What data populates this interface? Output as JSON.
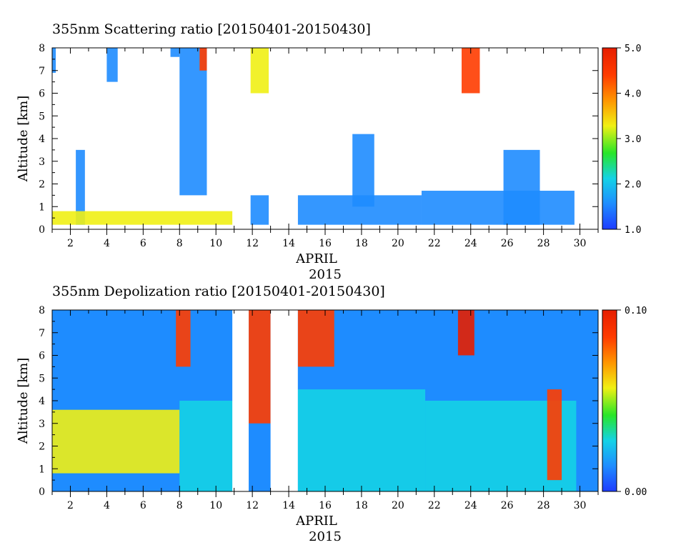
{
  "chart_data": [
    {
      "type": "heatmap",
      "title": "355nm Scattering ratio [20150401-20150430]",
      "xlabel": "APRIL",
      "xlabel2": "2015",
      "ylabel": "Altitude [km]",
      "x_unit": "day of April 2015",
      "xlim": [
        1,
        31
      ],
      "ylim": [
        0,
        8
      ],
      "x_ticks": [
        "2",
        "4",
        "6",
        "8",
        "10",
        "12",
        "14",
        "16",
        "18",
        "20",
        "22",
        "24",
        "26",
        "28",
        "30"
      ],
      "y_ticks": [
        "0",
        "1",
        "2",
        "3",
        "4",
        "5",
        "6",
        "7",
        "8"
      ],
      "colorbar": {
        "range": [
          1.0,
          5.0
        ],
        "tick_labels": [
          "1.0",
          "2.0",
          "3.0",
          "4.0",
          "5.0"
        ],
        "colors": [
          "#1e3cff",
          "#1e8cff",
          "#14d2e6",
          "#28e628",
          "#f0f014",
          "#ff9600",
          "#ff3c00",
          "#e61e00"
        ]
      },
      "no_data_days": [
        [
          10.9,
          11.9
        ],
        [
          13.0,
          14.5
        ],
        [
          29.9,
          31.0
        ]
      ],
      "cloud_features": [
        {
          "x": [
            1.0,
            1.2
          ],
          "y": [
            6.9,
            8.0
          ],
          "value": 1.5
        },
        {
          "x": [
            4.0,
            4.6
          ],
          "y": [
            6.5,
            8.0
          ],
          "value": 1.5
        },
        {
          "x": [
            7.5,
            8.0
          ],
          "y": [
            7.6,
            8.0
          ],
          "value": 1.4
        },
        {
          "x": [
            8.0,
            9.5
          ],
          "y": [
            1.5,
            8.0
          ],
          "value": 1.5
        },
        {
          "x": [
            9.1,
            9.5
          ],
          "y": [
            7.0,
            8.0
          ],
          "value": 4.5
        },
        {
          "x": [
            2.3,
            2.8
          ],
          "y": [
            0.2,
            3.5
          ],
          "value": 1.8
        },
        {
          "x": [
            11.9,
            12.9
          ],
          "y": [
            6.0,
            8.0
          ],
          "value": 3.5
        },
        {
          "x": [
            11.9,
            12.9
          ],
          "y": [
            0.2,
            1.5
          ],
          "value": 1.3
        },
        {
          "x": [
            14.5,
            21.3
          ],
          "y": [
            0.2,
            1.5
          ],
          "value": 1.4
        },
        {
          "x": [
            17.5,
            18.7
          ],
          "y": [
            1.0,
            4.2
          ],
          "value": 1.5
        },
        {
          "x": [
            21.3,
            29.7
          ],
          "y": [
            0.2,
            1.7
          ],
          "value": 1.4
        },
        {
          "x": [
            25.8,
            27.8
          ],
          "y": [
            0.2,
            3.5
          ],
          "value": 1.4
        },
        {
          "x": [
            23.5,
            24.5
          ],
          "y": [
            6.0,
            8.0
          ],
          "value": 4.5
        },
        {
          "x": [
            1.0,
            11.0
          ],
          "y": [
            0.2,
            0.8
          ],
          "value": 3.0
        }
      ]
    },
    {
      "type": "heatmap",
      "title": "355nm Depolization ratio [20150401-20150430]",
      "xlabel": "APRIL",
      "xlabel2": "2015",
      "ylabel": "Altitude [km]",
      "x_unit": "day of April 2015",
      "xlim": [
        1,
        31
      ],
      "ylim": [
        0,
        8
      ],
      "x_ticks": [
        "2",
        "4",
        "6",
        "8",
        "10",
        "12",
        "14",
        "16",
        "18",
        "20",
        "22",
        "24",
        "26",
        "28",
        "30"
      ],
      "y_ticks": [
        "0",
        "1",
        "2",
        "3",
        "4",
        "5",
        "6",
        "7",
        "8"
      ],
      "colorbar": {
        "range": [
          0.0,
          0.1
        ],
        "tick_labels": [
          "0.00",
          "0.10"
        ],
        "colors": [
          "#1e3cff",
          "#1e8cff",
          "#14d2e6",
          "#28e628",
          "#f0f014",
          "#ff9600",
          "#ff3c00",
          "#e61e00"
        ]
      },
      "no_data_days": [
        [
          10.9,
          11.8
        ],
        [
          13.0,
          14.5
        ]
      ],
      "cloud_features": [
        {
          "x": [
            1.0,
            11.0
          ],
          "y": [
            4.0,
            8.0
          ],
          "value": 0.01
        },
        {
          "x": [
            1.0,
            8.0
          ],
          "y": [
            0.8,
            3.6
          ],
          "value": 0.055
        },
        {
          "x": [
            8.0,
            11.0
          ],
          "y": [
            0.0,
            4.0
          ],
          "value": 0.025
        },
        {
          "x": [
            7.8,
            8.6
          ],
          "y": [
            5.5,
            8.0
          ],
          "value": 0.09
        },
        {
          "x": [
            11.8,
            13.0
          ],
          "y": [
            3.0,
            8.0
          ],
          "value": 0.08
        },
        {
          "x": [
            14.5,
            21.5
          ],
          "y": [
            0.0,
            4.5
          ],
          "value": 0.03
        },
        {
          "x": [
            14.5,
            16.5
          ],
          "y": [
            5.5,
            8.0
          ],
          "value": 0.09
        },
        {
          "x": [
            21.5,
            29.8
          ],
          "y": [
            0.0,
            4.0
          ],
          "value": 0.025
        },
        {
          "x": [
            23.3,
            24.2
          ],
          "y": [
            6.0,
            8.0
          ],
          "value": 0.095
        },
        {
          "x": [
            28.2,
            29.0
          ],
          "y": [
            0.5,
            4.5
          ],
          "value": 0.09
        },
        {
          "x": [
            29.8,
            31.0
          ],
          "y": [
            0.0,
            8.0
          ],
          "value": 0.02
        }
      ]
    }
  ]
}
